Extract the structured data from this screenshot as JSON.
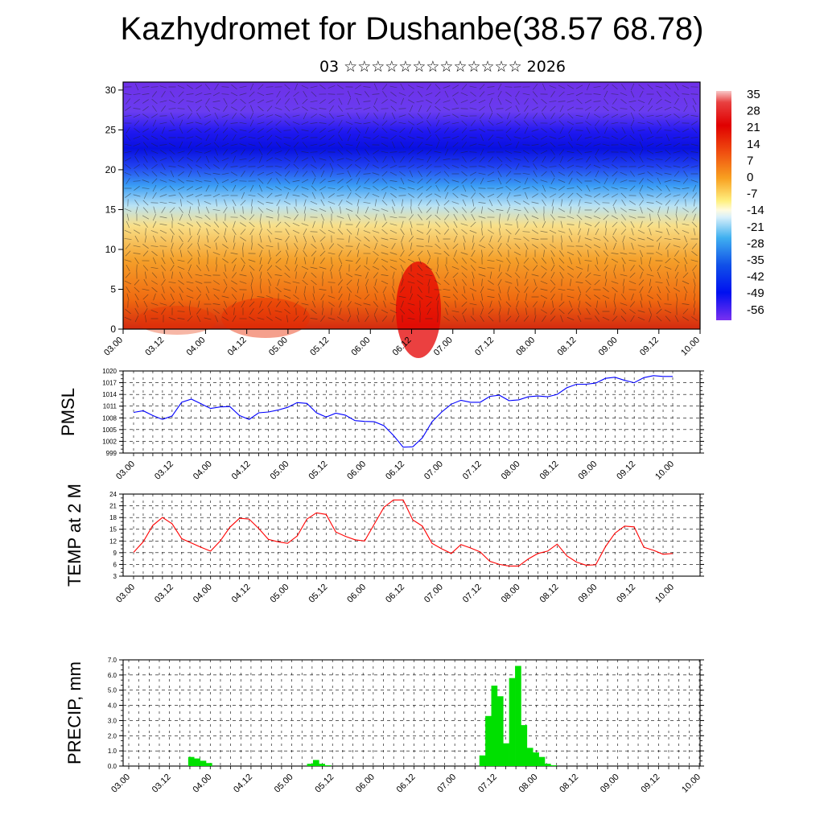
{
  "title": "Kazhydromet for Dushanbe(38.57 68.78)",
  "subtitle": "03 ☆☆☆☆☆☆☆☆☆☆☆☆☆ 2026",
  "time_labels": [
    "03.00",
    "03.12",
    "04.00",
    "04.12",
    "05.00",
    "05.12",
    "06.00",
    "06.12",
    "07.00",
    "07.12",
    "08.00",
    "08.12",
    "09.00",
    "09.12",
    "10.00"
  ],
  "colors": {
    "pmsl_line": "#0000ff",
    "temp_line": "#ff0000",
    "precip_bar": "#00e000"
  },
  "chart_data": [
    {
      "type": "heatmap",
      "name": "vertical cross-section",
      "ylim": [
        0,
        31
      ],
      "yticks": [
        "0",
        "5",
        "10",
        "15",
        "20",
        "25",
        "30"
      ],
      "colorbar_labels": [
        "35",
        "28",
        "21",
        "14",
        "7",
        "0",
        "-7",
        "-14",
        "-21",
        "-28",
        "-35",
        "-42",
        "-49",
        "-56"
      ]
    },
    {
      "type": "line",
      "ylabel": "PMSL",
      "ylim": [
        999,
        1020
      ],
      "yticks": [
        "999",
        "1002",
        "1005",
        "1008",
        "1011",
        "1014",
        "1017",
        "1020"
      ],
      "values": [
        1009.4,
        1009.8,
        1008.6,
        1007.6,
        1008.5,
        1012.0,
        1012.8,
        1011.6,
        1010.4,
        1010.8,
        1010.9,
        1008.6,
        1007.6,
        1009.3,
        1009.5,
        1010.0,
        1010.7,
        1011.9,
        1011.7,
        1009.3,
        1008.2,
        1009.2,
        1008.7,
        1007.3,
        1007.1,
        1007.0,
        1006.0,
        1003.5,
        1000.5,
        1000.6,
        1002.9,
        1007.0,
        1009.5,
        1011.5,
        1012.5,
        1012.0,
        1012.0,
        1013.5,
        1013.8,
        1012.4,
        1012.6,
        1013.4,
        1013.6,
        1013.4,
        1014.0,
        1015.7,
        1016.6,
        1016.6,
        1016.9,
        1018.1,
        1018.4,
        1017.6,
        1017.0,
        1018.3,
        1018.8,
        1018.6,
        1018.6
      ]
    },
    {
      "type": "line",
      "ylabel": "TEMP at 2 M",
      "ylim": [
        3,
        24
      ],
      "yticks": [
        "3",
        "6",
        "9",
        "12",
        "15",
        "18",
        "21",
        "24"
      ],
      "values": [
        9.1,
        11.8,
        16.0,
        18.0,
        16.4,
        12.6,
        11.5,
        10.4,
        9.4,
        12.0,
        15.5,
        17.8,
        17.6,
        15.2,
        12.4,
        11.8,
        11.4,
        13.3,
        17.6,
        19.2,
        18.8,
        14.3,
        13.2,
        12.3,
        12.0,
        16.3,
        20.6,
        22.5,
        22.5,
        17.4,
        15.8,
        11.4,
        10.0,
        8.8,
        11.1,
        10.2,
        9.2,
        6.8,
        6.0,
        5.6,
        5.6,
        7.4,
        8.8,
        9.4,
        11.2,
        8.2,
        6.6,
        5.8,
        5.9,
        10.5,
        14.0,
        15.8,
        15.6,
        10.4,
        9.6,
        8.6,
        8.8
      ]
    },
    {
      "type": "bar",
      "ylabel": "PRECIP, mm",
      "ylim": [
        0,
        7.0
      ],
      "yticks": [
        "0.0",
        "1.0",
        "2.0",
        "3.0",
        "4.0",
        "5.0",
        "6.0",
        "7.0"
      ],
      "values": [
        0,
        0,
        0,
        0,
        0,
        0,
        0,
        0,
        0,
        0,
        0.6,
        0.5,
        0.35,
        0.2,
        0,
        0,
        0,
        0,
        0,
        0,
        0,
        0,
        0,
        0,
        0,
        0,
        0,
        0,
        0,
        0,
        0.15,
        0.4,
        0.15,
        0.05,
        0,
        0,
        0,
        0,
        0,
        0,
        0,
        0,
        0,
        0,
        0,
        0,
        0,
        0,
        0,
        0,
        0,
        0,
        0,
        0,
        0,
        0,
        0,
        0,
        0,
        0.7,
        3.3,
        5.3,
        4.6,
        1.5,
        5.8,
        6.6,
        2.7,
        1.2,
        0.9,
        0.6,
        0.15,
        0.05,
        0,
        0,
        0,
        0,
        0,
        0,
        0,
        0,
        0,
        0,
        0,
        0,
        0,
        0,
        0,
        0,
        0,
        0,
        0,
        0,
        0,
        0,
        0,
        0
      ]
    }
  ]
}
